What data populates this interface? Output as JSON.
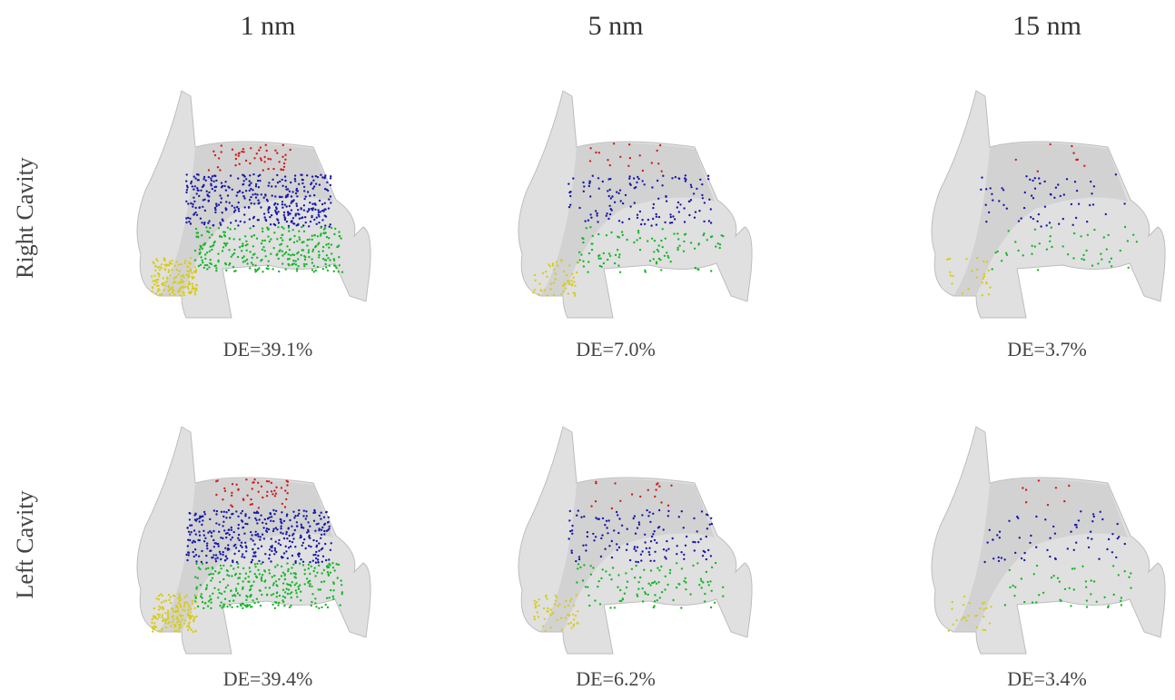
{
  "columns": [
    "1 nm",
    "5 nm",
    "15 nm"
  ],
  "rows": [
    {
      "label": "Right Cavity",
      "efficiencies": [
        "DE=39.1%",
        "DE=7.0%",
        "DE=3.7%"
      ]
    },
    {
      "label": "Left Cavity",
      "efficiencies": [
        "DE=39.4%",
        "DE=6.2%",
        "DE=3.4%"
      ]
    }
  ]
}
